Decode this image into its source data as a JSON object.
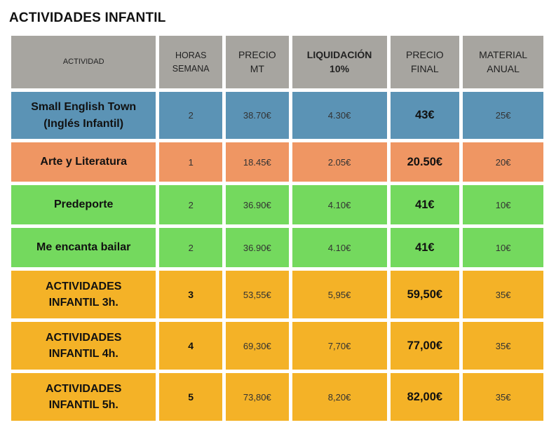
{
  "title": "ACTIVIDADES INFANTIL",
  "colors": {
    "header": "#a7a5a0",
    "blue": "#5b93b5",
    "salmon": "#ef9663",
    "green": "#74d95e",
    "amber": "#f4b227"
  },
  "headers": {
    "actividad": "ACTIVIDAD",
    "horas_l1": "HORAS",
    "horas_l2": "SEMANA",
    "precio_mt_l1": "PRECIO",
    "precio_mt_l2": "MT",
    "liquidacion_l1": "LIQUIDACIÓN",
    "liquidacion_l2": "10%",
    "precio_final_l1": "PRECIO",
    "precio_final_l2": "FINAL",
    "material_l1": "MATERIAL",
    "material_l2": "ANUAL"
  },
  "rows": [
    {
      "name_l1": "Small English Town",
      "name_l2": "(Inglés Infantil)",
      "horas": "2",
      "precio_mt": "38.70€",
      "liquidacion": "4.30€",
      "precio_final": "43€",
      "material": "25€",
      "color": "#5b93b5"
    },
    {
      "name_l1": "Arte y Literatura",
      "name_l2": "",
      "horas": "1",
      "precio_mt": "18.45€",
      "liquidacion": "2.05€",
      "precio_final": "20.50€",
      "material": "20€",
      "color": "#ef9663"
    },
    {
      "name_l1": "Predeporte",
      "name_l2": "",
      "horas": "2",
      "precio_mt": "36.90€",
      "liquidacion": "4.10€",
      "precio_final": "41€",
      "material": "10€",
      "color": "#74d95e"
    },
    {
      "name_l1": "Me encanta bailar",
      "name_l2": "",
      "horas": "2",
      "precio_mt": "36.90€",
      "liquidacion": "4.10€",
      "precio_final": "41€",
      "material": "10€",
      "color": "#74d95e"
    },
    {
      "name_l1": "ACTIVIDADES",
      "name_l2": "INFANTIL 3h.",
      "horas": "3",
      "precio_mt": "53,55€",
      "liquidacion": "5,95€",
      "precio_final": "59,50€",
      "material": "35€",
      "color": "#f4b227"
    },
    {
      "name_l1": "ACTIVIDADES",
      "name_l2": "INFANTIL 4h.",
      "horas": "4",
      "precio_mt": "69,30€",
      "liquidacion": "7,70€",
      "precio_final": "77,00€",
      "material": "35€",
      "color": "#f4b227"
    },
    {
      "name_l1": "ACTIVIDADES",
      "name_l2": "INFANTIL 5h.",
      "horas": "5",
      "precio_mt": "73,80€",
      "liquidacion": "8,20€",
      "precio_final": "82,00€",
      "material": "35€",
      "color": "#f4b227"
    }
  ]
}
